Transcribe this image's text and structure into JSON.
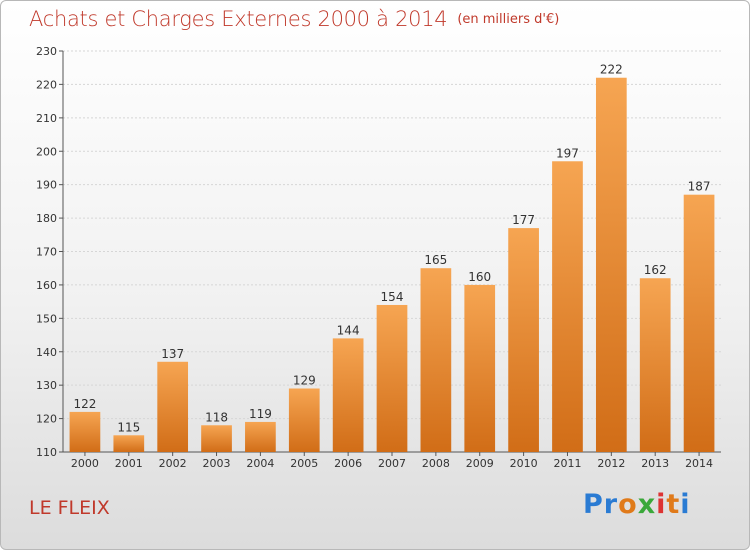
{
  "header": {
    "title": "Achats et Charges Externes 2000 à 2014",
    "unit": "(en milliers d'€)"
  },
  "footer": {
    "place": "LE FLEIX",
    "logo_letters": [
      "P",
      "r",
      "o",
      "x",
      "i",
      "t",
      "i"
    ],
    "logo_colors": [
      "#2a7bd3",
      "#2a7bd3",
      "#e07a1a",
      "#3aa83a",
      "#d33",
      "#e07a1a",
      "#2a7bd3"
    ]
  },
  "chart_data": {
    "type": "bar",
    "title": "Achats et Charges Externes 2000 à 2014",
    "categories": [
      "2000",
      "2001",
      "2002",
      "2003",
      "2004",
      "2005",
      "2006",
      "2007",
      "2008",
      "2009",
      "2010",
      "2011",
      "2012",
      "2013",
      "2014"
    ],
    "values": [
      122,
      115,
      137,
      118,
      119,
      129,
      144,
      154,
      165,
      160,
      177,
      197,
      222,
      162,
      187
    ],
    "ylim": [
      110,
      230
    ],
    "yticks": [
      110,
      120,
      130,
      140,
      150,
      160,
      170,
      180,
      190,
      200,
      210,
      220,
      230
    ],
    "grid": true,
    "bar_color_top": "#f6a552",
    "bar_color_bottom": "#d16d17"
  }
}
